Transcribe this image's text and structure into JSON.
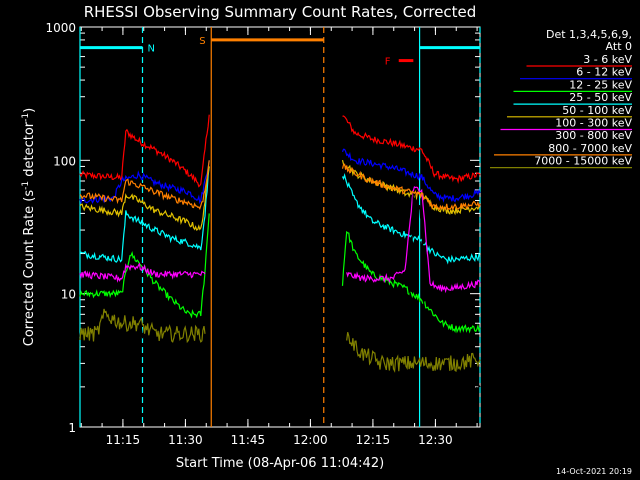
{
  "chart_data": {
    "type": "line",
    "title": "RHESSI Observing Summary Count Rates, Corrected",
    "xlabel": "Start Time (08-Apr-06 11:04:42)",
    "ylabel_main": "Corrected Count Rate (s",
    "ylabel_sup1": "-1",
    "ylabel_mid": " detector",
    "ylabel_sup2": "-1",
    "ylabel_end": ")",
    "timestamp": "14-Oct-2021 20:19",
    "y_scale": "log",
    "ylim": [
      1,
      1000
    ],
    "xlim_min": [
      0,
      76
    ],
    "x_ticks": [
      {
        "min": 10.3,
        "label": "11:15"
      },
      {
        "min": 25.3,
        "label": "11:30"
      },
      {
        "min": 40.3,
        "label": "11:45"
      },
      {
        "min": 55.3,
        "label": "12:00"
      },
      {
        "min": 70.3,
        "label": "12:15"
      },
      {
        "min": 85.3,
        "label": "12:30"
      }
    ],
    "y_ticks": [
      {
        "value": 1,
        "label": "1"
      },
      {
        "value": 10,
        "label": "10"
      },
      {
        "value": 100,
        "label": "100"
      },
      {
        "value": 1000,
        "label": "1000"
      }
    ],
    "legend_header": [
      "Det 1,3,4,5,6,9,",
      "Att 0"
    ],
    "series": [
      {
        "name": "3 - 6 keV",
        "color": "#ff0000",
        "pre": [
          [
            0,
            78
          ],
          [
            10,
            74
          ],
          [
            11,
            165
          ],
          [
            14,
            140
          ],
          [
            18,
            120
          ],
          [
            22,
            100
          ],
          [
            26,
            80
          ],
          [
            29,
            65
          ],
          [
            30,
            120
          ],
          [
            31,
            220
          ]
        ],
        "post": [
          [
            63,
            220
          ],
          [
            66,
            160
          ],
          [
            70,
            145
          ],
          [
            75,
            135
          ],
          [
            79,
            125
          ],
          [
            82,
            120
          ],
          [
            85,
            80
          ],
          [
            88,
            74
          ],
          [
            90,
            72
          ],
          [
            96,
            78
          ]
        ]
      },
      {
        "name": "6 - 12 keV",
        "color": "#0000ff",
        "pre": [
          [
            0,
            50
          ],
          [
            8,
            52
          ],
          [
            10,
            70
          ],
          [
            14,
            78
          ],
          [
            18,
            68
          ],
          [
            22,
            62
          ],
          [
            26,
            58
          ],
          [
            29,
            50
          ],
          [
            30,
            70
          ],
          [
            31,
            100
          ]
        ],
        "post": [
          [
            63,
            120
          ],
          [
            66,
            100
          ],
          [
            70,
            95
          ],
          [
            75,
            88
          ],
          [
            79,
            80
          ],
          [
            82,
            75
          ],
          [
            85,
            55
          ],
          [
            88,
            52
          ],
          [
            90,
            52
          ],
          [
            96,
            57
          ]
        ]
      },
      {
        "name": "12 - 25 keV",
        "color": "#00ff00",
        "pre": [
          [
            0,
            10
          ],
          [
            7,
            10
          ],
          [
            10,
            10
          ],
          [
            12,
            20
          ],
          [
            15,
            16
          ],
          [
            18,
            12
          ],
          [
            22,
            9
          ],
          [
            26,
            7
          ],
          [
            29,
            7
          ],
          [
            30,
            15
          ],
          [
            31,
            40
          ]
        ],
        "post": [
          [
            63,
            12
          ],
          [
            64,
            30
          ],
          [
            66,
            20
          ],
          [
            70,
            14
          ],
          [
            75,
            12
          ],
          [
            78,
            11
          ],
          [
            82,
            9
          ],
          [
            85,
            7
          ],
          [
            87,
            6
          ],
          [
            90,
            5.5
          ],
          [
            96,
            5.5
          ]
        ]
      },
      {
        "name": "25 - 50 keV",
        "color": "#00ffff",
        "pre": [
          [
            0,
            20
          ],
          [
            10,
            18
          ],
          [
            11,
            40
          ],
          [
            14,
            35
          ],
          [
            18,
            30
          ],
          [
            22,
            26
          ],
          [
            26,
            24
          ],
          [
            29,
            22
          ],
          [
            30,
            40
          ],
          [
            31,
            90
          ]
        ],
        "post": [
          [
            63,
            80
          ],
          [
            66,
            50
          ],
          [
            70,
            35
          ],
          [
            75,
            30
          ],
          [
            79,
            27
          ],
          [
            82,
            25
          ],
          [
            85,
            20
          ],
          [
            88,
            18
          ],
          [
            90,
            18
          ],
          [
            96,
            19
          ]
        ]
      },
      {
        "name": "50 - 100 keV",
        "color": "#e0c000",
        "pre": [
          [
            0,
            45
          ],
          [
            10,
            40
          ],
          [
            11,
            55
          ],
          [
            14,
            50
          ],
          [
            18,
            42
          ],
          [
            22,
            38
          ],
          [
            26,
            34
          ],
          [
            29,
            30
          ],
          [
            30,
            50
          ],
          [
            31,
            90
          ]
        ],
        "post": [
          [
            63,
            100
          ],
          [
            66,
            80
          ],
          [
            70,
            70
          ],
          [
            75,
            62
          ],
          [
            79,
            55
          ],
          [
            82,
            55
          ],
          [
            85,
            45
          ],
          [
            88,
            42
          ],
          [
            90,
            42
          ],
          [
            96,
            45
          ]
        ]
      },
      {
        "name": "100 - 300 keV",
        "color": "#ff00ff",
        "pre": [
          [
            0,
            14
          ],
          [
            10,
            13
          ],
          [
            11,
            16
          ],
          [
            14,
            16
          ],
          [
            18,
            14
          ],
          [
            22,
            14
          ],
          [
            26,
            14
          ],
          [
            29,
            14
          ],
          [
            30,
            14
          ]
        ],
        "post": [
          [
            64,
            14
          ],
          [
            68,
            13
          ],
          [
            72,
            13
          ],
          [
            75,
            13
          ],
          [
            78,
            15
          ],
          [
            80,
            60
          ],
          [
            82,
            62
          ],
          [
            84,
            12
          ],
          [
            86,
            11
          ],
          [
            90,
            11
          ],
          [
            96,
            12
          ]
        ]
      },
      {
        "name": "300 - 800 keV",
        "color": "#000000",
        "pre": [
          [
            0,
            5
          ],
          [
            10,
            5
          ],
          [
            11,
            6
          ],
          [
            13,
            7
          ],
          [
            14,
            5
          ],
          [
            18,
            4
          ],
          [
            22,
            4
          ],
          [
            26,
            4
          ],
          [
            29,
            4
          ],
          [
            30,
            7
          ],
          [
            31,
            20
          ]
        ],
        "post": [
          [
            64,
            8
          ],
          [
            66,
            6
          ],
          [
            68,
            5
          ],
          [
            70,
            4
          ],
          [
            72,
            3
          ],
          [
            74,
            2.5
          ],
          [
            76,
            2.5
          ],
          [
            79,
            6
          ],
          [
            80,
            55
          ],
          [
            82,
            40
          ],
          [
            83,
            2
          ],
          [
            86,
            2
          ],
          [
            90,
            2
          ],
          [
            96,
            2
          ]
        ]
      },
      {
        "name": "800 - 7000 keV",
        "color": "#ff8000",
        "pre": [
          [
            0,
            55
          ],
          [
            10,
            50
          ],
          [
            11,
            70
          ],
          [
            14,
            65
          ],
          [
            18,
            58
          ],
          [
            22,
            52
          ],
          [
            26,
            48
          ],
          [
            29,
            44
          ],
          [
            30,
            60
          ],
          [
            31,
            100
          ]
        ],
        "post": [
          [
            63,
            90
          ],
          [
            66,
            80
          ],
          [
            70,
            70
          ],
          [
            75,
            62
          ],
          [
            79,
            58
          ],
          [
            82,
            55
          ],
          [
            85,
            45
          ],
          [
            88,
            45
          ],
          [
            90,
            45
          ],
          [
            96,
            47
          ]
        ]
      },
      {
        "name": "7000 - 15000 keV",
        "color": "#808000",
        "pre": [
          [
            0,
            5
          ],
          [
            4,
            5
          ],
          [
            6,
            7
          ],
          [
            10,
            6
          ],
          [
            14,
            6
          ],
          [
            18,
            5
          ],
          [
            22,
            5
          ],
          [
            26,
            5
          ],
          [
            29,
            5
          ],
          [
            30,
            5
          ]
        ],
        "post": [
          [
            64,
            5
          ],
          [
            66,
            4
          ],
          [
            68,
            3.5
          ],
          [
            70,
            3.3
          ],
          [
            72,
            3
          ],
          [
            75,
            3
          ],
          [
            80,
            3
          ],
          [
            85,
            3
          ],
          [
            90,
            3
          ],
          [
            96,
            3.2
          ]
        ]
      }
    ],
    "intervals": [
      {
        "label": "N",
        "color": "#00ffff",
        "start_min": 0,
        "end_min": 15,
        "level": 700
      },
      {
        "label": "S",
        "color": "#ff8000",
        "start_min": 31.5,
        "end_min": 58.5,
        "level": 800
      },
      {
        "label": "F",
        "color": "#ff0000",
        "start_min": 76.5,
        "end_min": 80,
        "level": 560
      },
      {
        "label": "",
        "color": "#00ffff",
        "start_min": 81.5,
        "end_min": 96,
        "level": 700
      }
    ],
    "markers": [
      {
        "min": 0,
        "color": "#00ffff",
        "style": "solid"
      },
      {
        "min": 15,
        "color": "#00ffff",
        "style": "dash"
      },
      {
        "min": 31.5,
        "color": "#ff8000",
        "style": "solid"
      },
      {
        "min": 58.5,
        "color": "#ff8000",
        "style": "dash"
      },
      {
        "min": 81.5,
        "color": "#00ffff",
        "style": "solid"
      },
      {
        "min": 96,
        "color": "#00ffff",
        "style": "dash"
      }
    ]
  }
}
